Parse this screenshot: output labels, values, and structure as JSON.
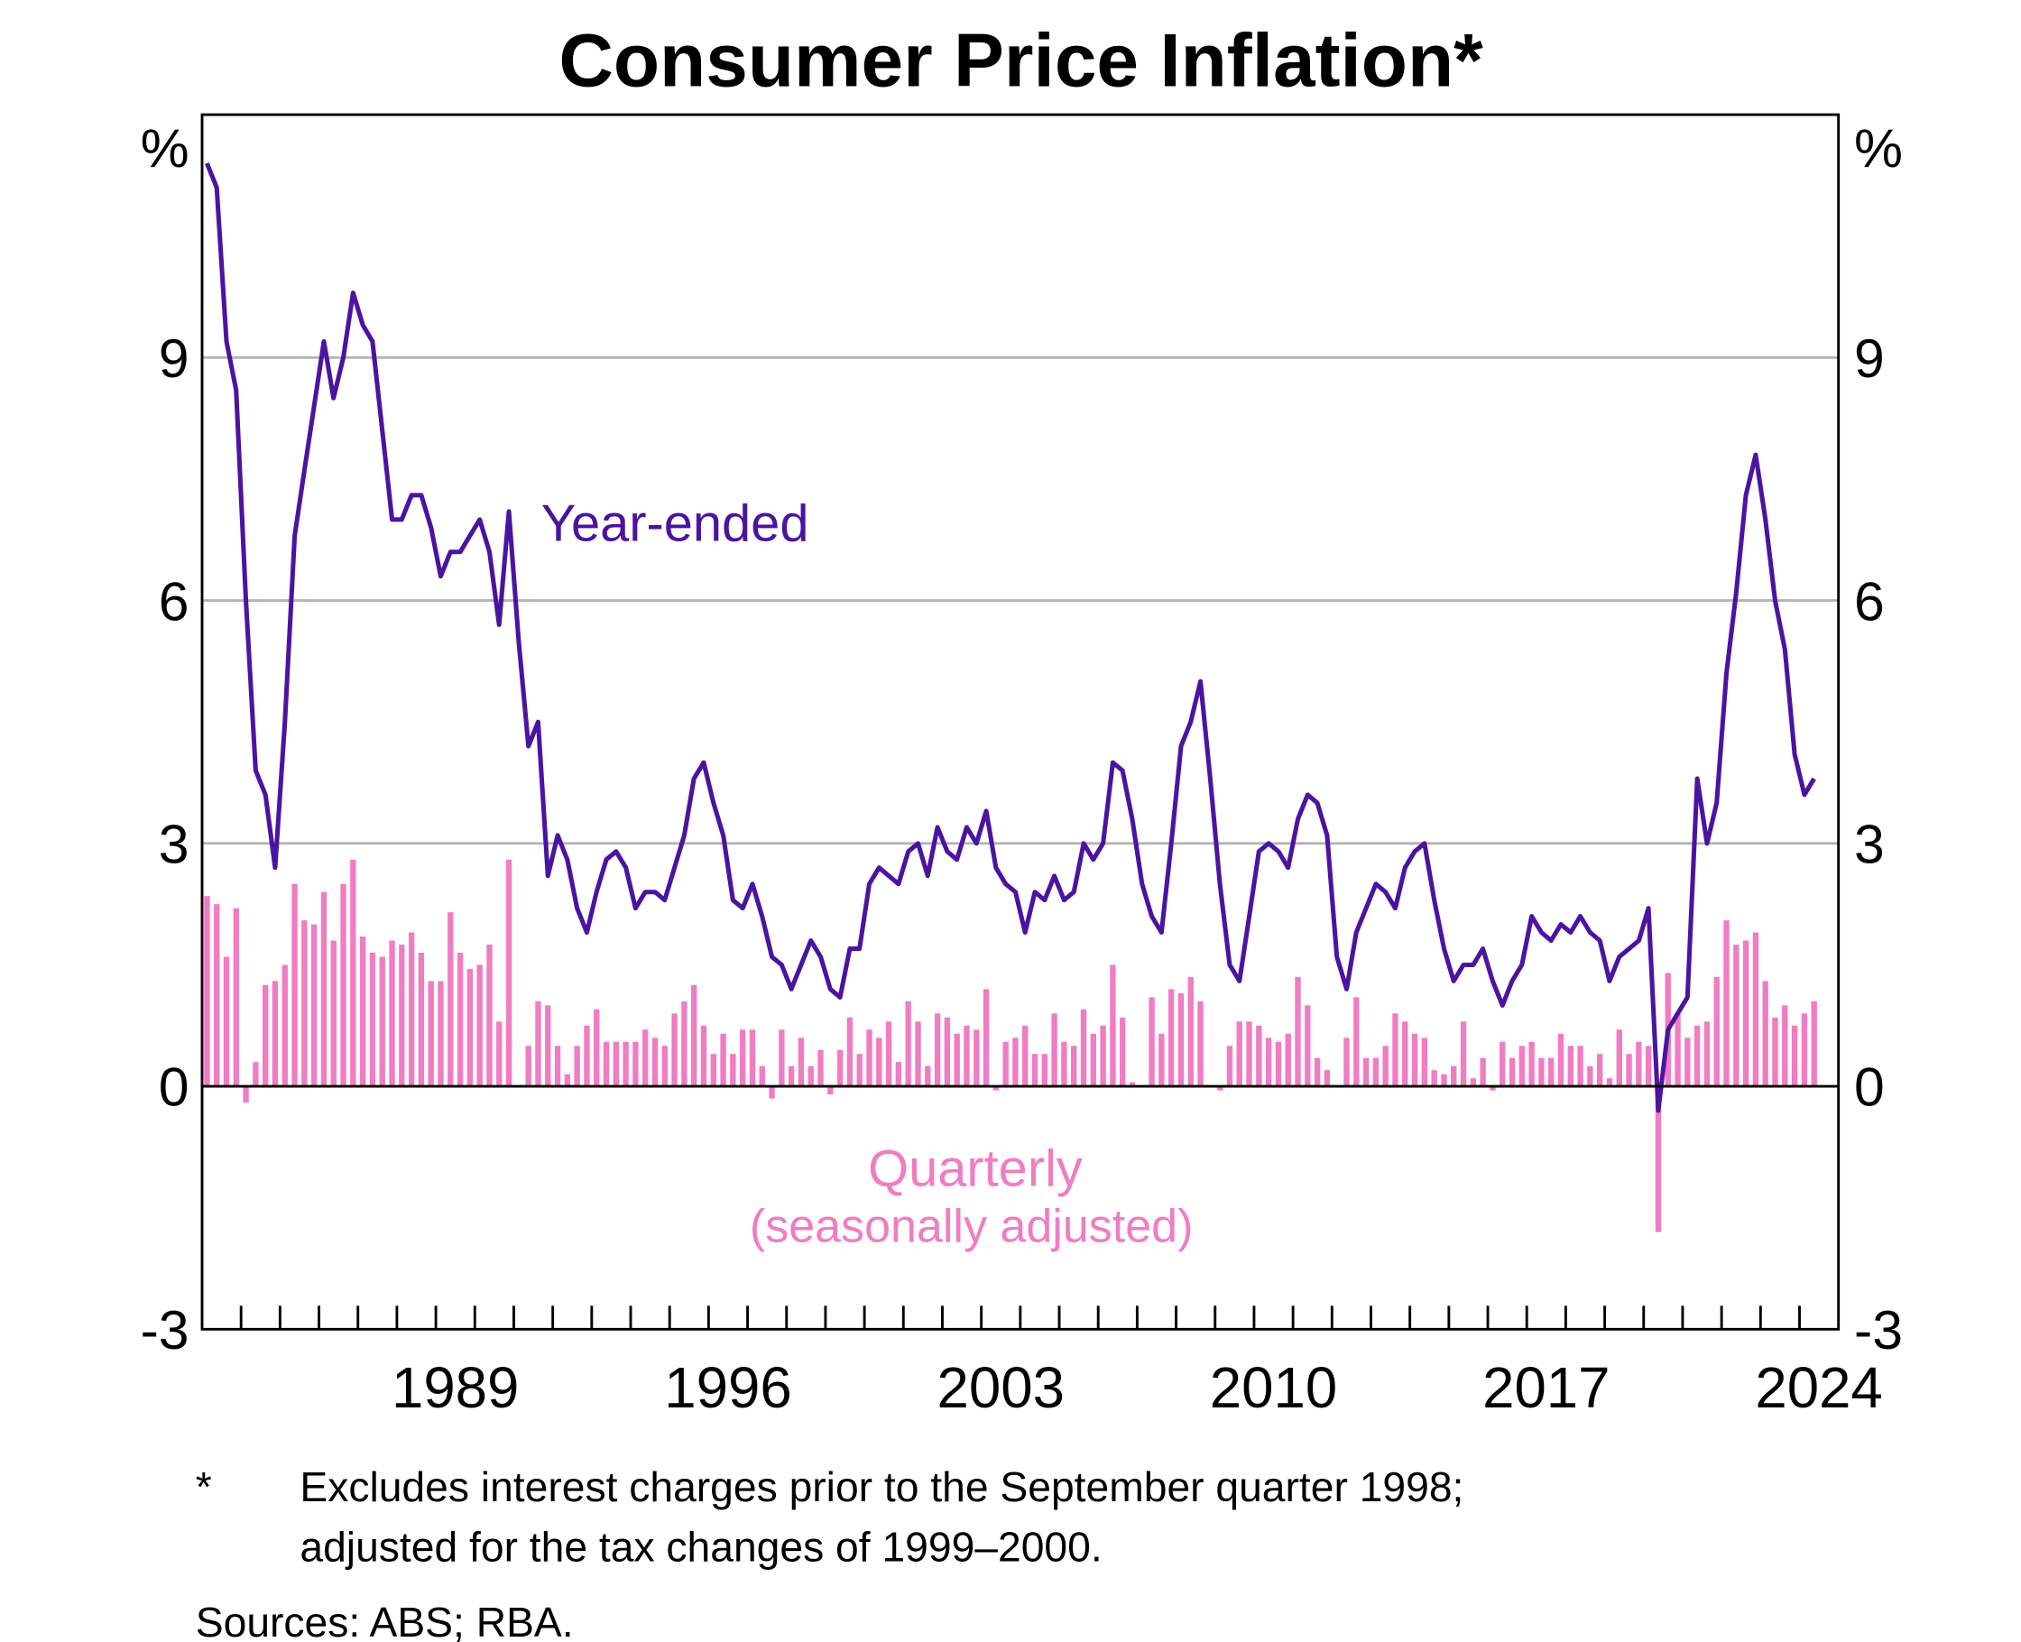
{
  "chart_data": {
    "type": "bar+line",
    "title": "Consumer Price Inflation*",
    "ylabel_left": "%",
    "ylabel_right": "%",
    "ylim": [
      -3,
      12
    ],
    "yticks": [
      -3,
      0,
      3,
      6,
      9
    ],
    "ytick_labels": [
      "-3",
      "0",
      "3",
      "6",
      "9"
    ],
    "x_start_year": 1983,
    "x_end_year": 2024,
    "xtick_labels": [
      "1989",
      "1996",
      "2003",
      "2010",
      "2017",
      "2024"
    ],
    "grid": true,
    "frequency": "quarterly",
    "first_period": "1983 Q1",
    "last_period": "2024 Q2",
    "series": [
      {
        "name": "Year-ended",
        "type": "line",
        "color": "#4b14a0",
        "values": [
          11.4,
          11.1,
          9.2,
          8.6,
          6.0,
          3.9,
          3.6,
          2.7,
          4.5,
          6.8,
          7.6,
          8.4,
          9.2,
          8.5,
          9.0,
          9.8,
          9.4,
          9.2,
          8.1,
          7.0,
          7.0,
          7.3,
          7.3,
          6.9,
          6.3,
          6.6,
          6.6,
          6.8,
          7.0,
          6.6,
          5.7,
          7.1,
          5.5,
          4.2,
          4.5,
          2.6,
          3.1,
          2.8,
          2.2,
          1.9,
          2.4,
          2.8,
          2.9,
          2.7,
          2.2,
          2.4,
          2.4,
          2.3,
          2.7,
          3.1,
          3.8,
          4.0,
          3.5,
          3.1,
          2.3,
          2.2,
          2.5,
          2.1,
          1.6,
          1.5,
          1.2,
          1.5,
          1.8,
          1.6,
          1.2,
          1.1,
          1.7,
          1.7,
          2.5,
          2.7,
          2.6,
          2.5,
          2.9,
          3.0,
          2.6,
          3.2,
          2.9,
          2.8,
          3.2,
          3.0,
          3.4,
          2.7,
          2.5,
          2.4,
          1.9,
          2.4,
          2.3,
          2.6,
          2.3,
          2.4,
          3.0,
          2.8,
          3.0,
          4.0,
          3.9,
          3.3,
          2.5,
          2.1,
          1.9,
          3.0,
          4.2,
          4.5,
          5.0,
          3.8,
          2.5,
          1.5,
          1.3,
          2.1,
          2.9,
          3.0,
          2.9,
          2.7,
          3.3,
          3.6,
          3.5,
          3.1,
          1.6,
          1.2,
          1.9,
          2.2,
          2.5,
          2.4,
          2.2,
          2.7,
          2.9,
          3.0,
          2.3,
          1.7,
          1.3,
          1.5,
          1.5,
          1.7,
          1.3,
          1.0,
          1.3,
          1.5,
          2.1,
          1.9,
          1.8,
          2.0,
          1.9,
          2.1,
          1.9,
          1.8,
          1.3,
          1.6,
          1.7,
          1.8,
          2.2,
          -0.3,
          0.7,
          0.9,
          1.1,
          3.8,
          3.0,
          3.5,
          5.1,
          6.1,
          7.3,
          7.8,
          7.0,
          6.0,
          5.4,
          4.1,
          3.6,
          3.8
        ]
      },
      {
        "name": "Quarterly (seasonally adjusted)",
        "type": "bar",
        "color": "#f07cc4",
        "values": [
          2.35,
          2.25,
          1.6,
          2.2,
          -0.2,
          0.3,
          1.25,
          1.3,
          1.5,
          2.5,
          2.05,
          2.0,
          2.4,
          1.8,
          2.5,
          2.8,
          1.85,
          1.65,
          1.6,
          1.8,
          1.75,
          1.9,
          1.65,
          1.3,
          1.3,
          2.15,
          1.65,
          1.45,
          1.5,
          1.75,
          0.8,
          2.8,
          0.0,
          0.5,
          1.05,
          1.0,
          0.5,
          0.15,
          0.5,
          0.75,
          0.95,
          0.55,
          0.55,
          0.55,
          0.55,
          0.7,
          0.6,
          0.5,
          0.9,
          1.05,
          1.25,
          0.75,
          0.4,
          0.65,
          0.4,
          0.7,
          0.7,
          0.25,
          -0.15,
          0.7,
          0.25,
          0.6,
          0.25,
          0.45,
          -0.1,
          0.45,
          0.85,
          0.4,
          0.7,
          0.6,
          0.8,
          0.3,
          1.05,
          0.8,
          0.25,
          0.9,
          0.85,
          0.65,
          0.75,
          0.7,
          1.2,
          -0.05,
          0.55,
          0.6,
          0.75,
          0.4,
          0.4,
          0.9,
          0.55,
          0.5,
          0.95,
          0.65,
          0.75,
          1.5,
          0.85,
          0.05,
          0.0,
          1.1,
          0.65,
          1.2,
          1.15,
          1.35,
          1.05,
          0.0,
          -0.05,
          0.5,
          0.8,
          0.8,
          0.75,
          0.6,
          0.55,
          0.65,
          1.35,
          1.0,
          0.35,
          0.2,
          0.0,
          0.6,
          1.1,
          0.35,
          0.35,
          0.5,
          0.9,
          0.8,
          0.65,
          0.6,
          0.2,
          0.15,
          0.25,
          0.8,
          0.1,
          0.35,
          -0.05,
          0.55,
          0.35,
          0.5,
          0.55,
          0.35,
          0.35,
          0.65,
          0.5,
          0.5,
          0.25,
          0.4,
          0.1,
          0.7,
          0.4,
          0.55,
          0.5,
          -1.8,
          1.4,
          0.9,
          0.6,
          0.75,
          0.8,
          1.35,
          2.05,
          1.75,
          1.8,
          1.9,
          1.3,
          0.85,
          1.0,
          0.75,
          0.9,
          1.05
        ]
      }
    ],
    "annotations": {
      "year_ended": "Year-ended",
      "quarterly": "Quarterly",
      "quarterly_sub": "(seasonally adjusted)"
    },
    "colors": {
      "gridline": "#b4b4b4",
      "zero_line": "#000000"
    }
  },
  "footnotes": {
    "star": "*",
    "line1": "Excludes interest charges prior to the September quarter 1998;",
    "line2": "adjusted for the tax changes of 1999–2000.",
    "sources": "Sources: ABS; RBA."
  }
}
